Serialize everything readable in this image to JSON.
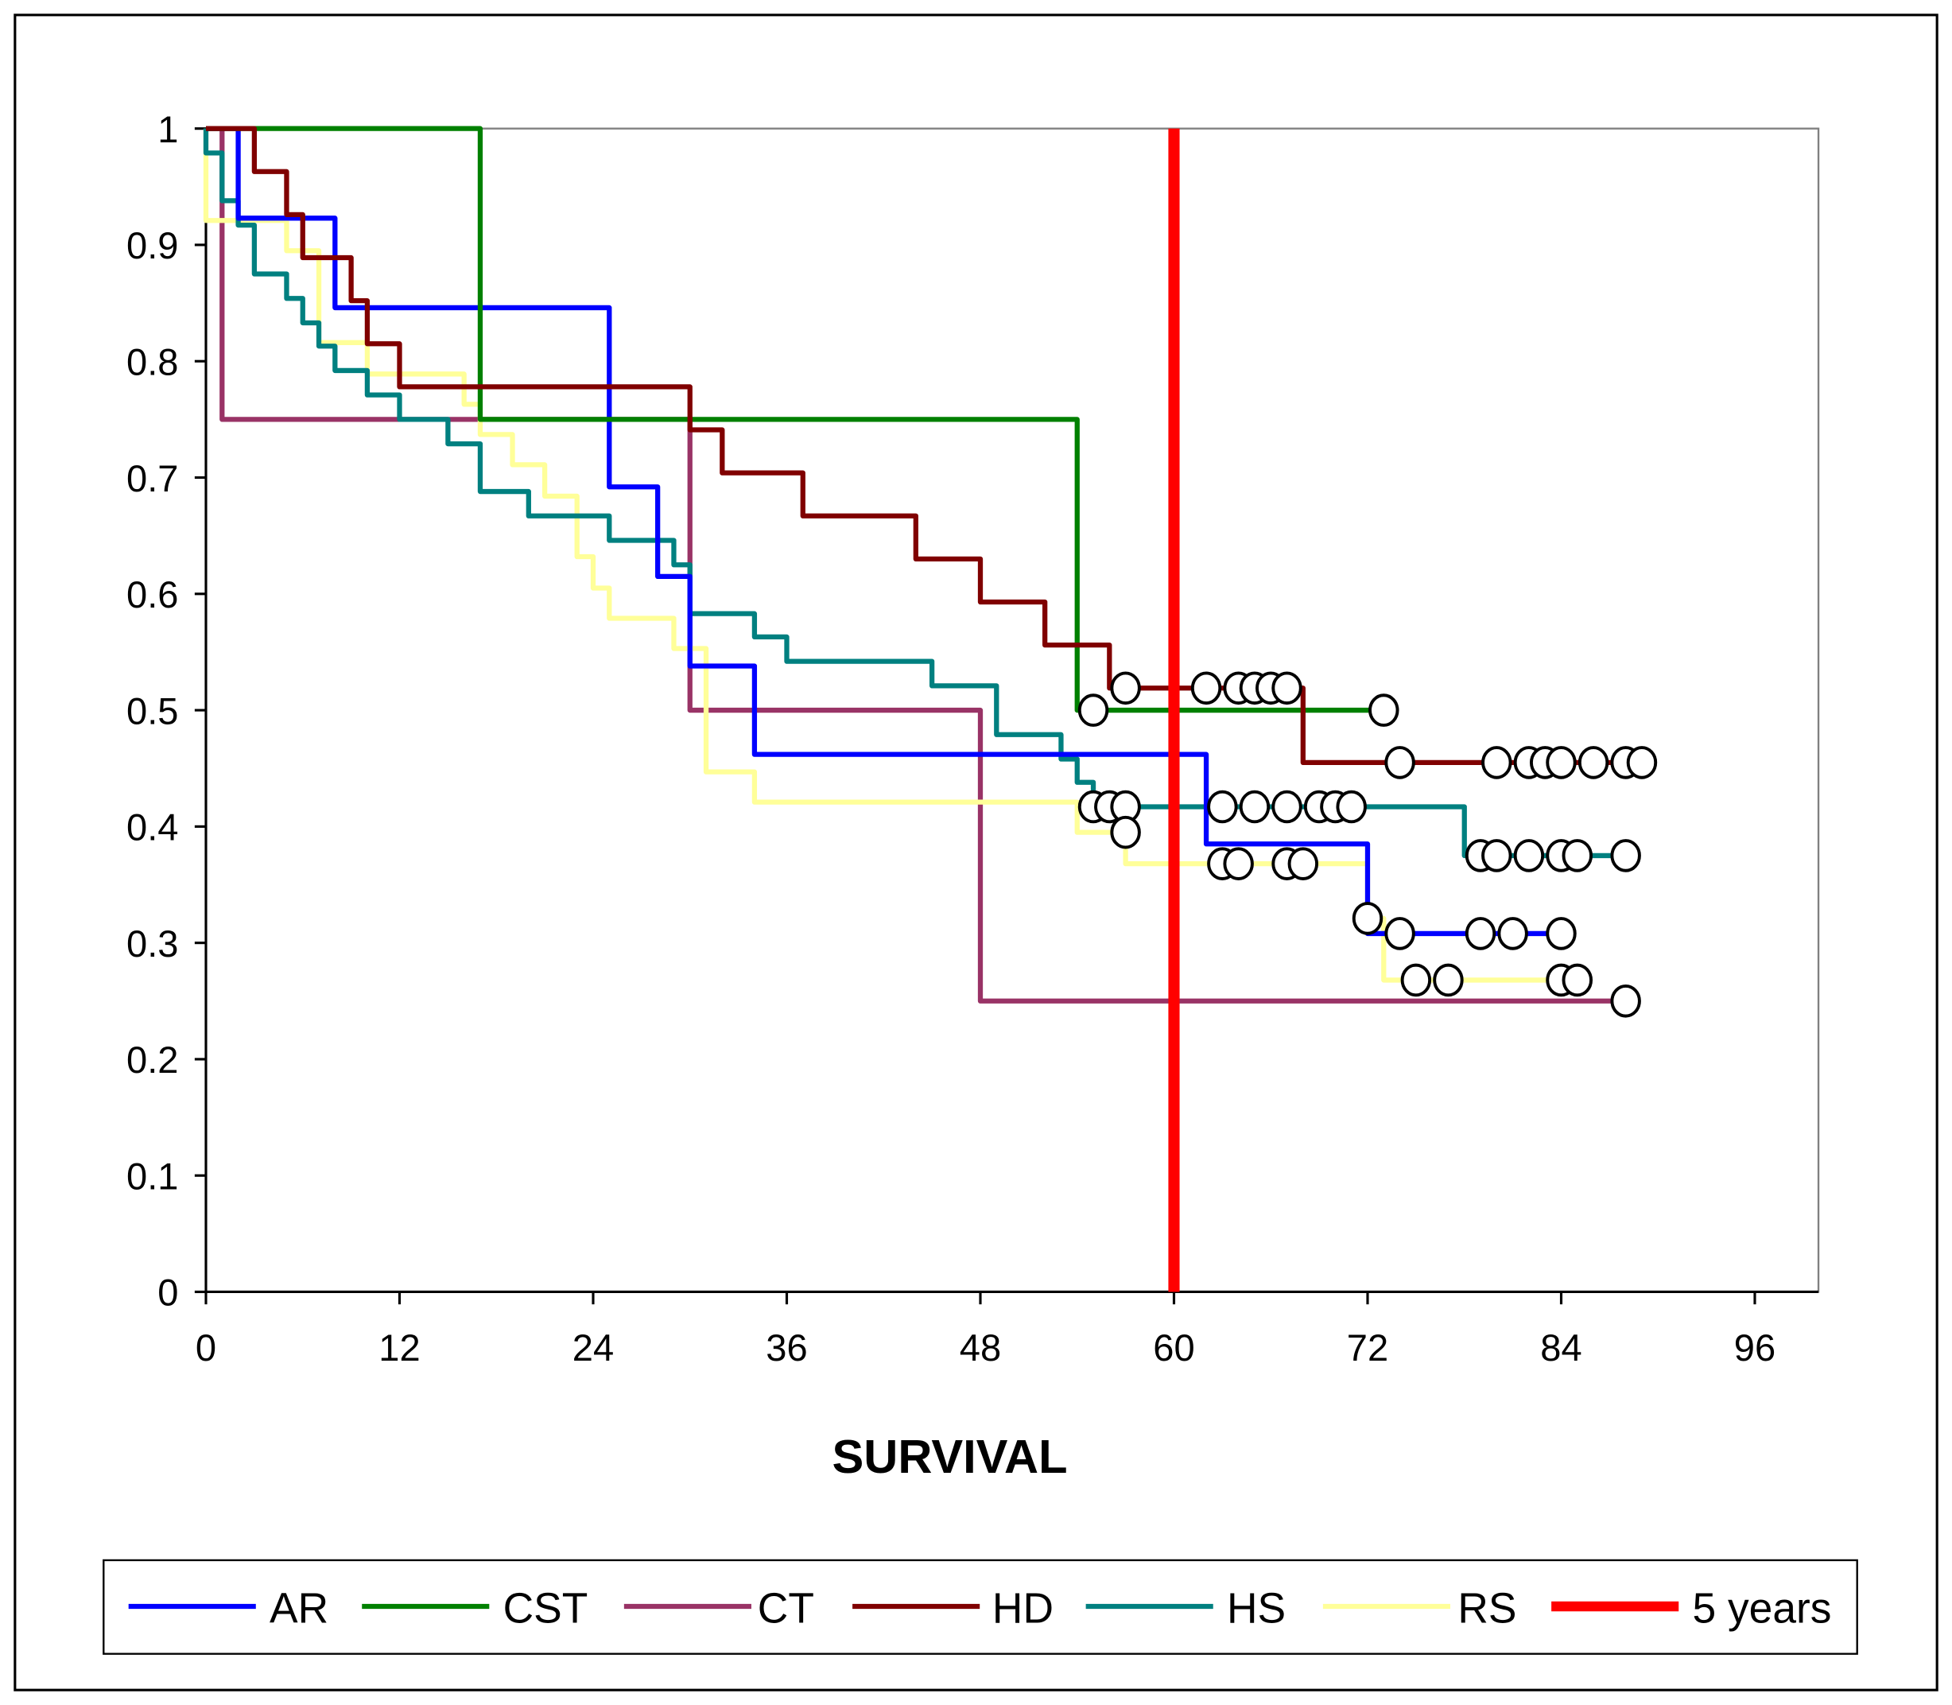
{
  "chart_data": {
    "type": "line",
    "subtype": "kaplan-meier step",
    "title": "",
    "xlabel": "SURVIVAL",
    "ylabel": "",
    "xlim": [
      0,
      100
    ],
    "ylim": [
      0,
      1
    ],
    "xticks": [
      "0",
      "12",
      "24",
      "36",
      "48",
      "60",
      "72",
      "84",
      "96"
    ],
    "xtick_values": [
      0,
      12,
      24,
      36,
      48,
      60,
      72,
      84,
      96
    ],
    "yticks": [
      "0",
      "0.1",
      "0.2",
      "0.3",
      "0.4",
      "0.5",
      "0.6",
      "0.7",
      "0.8",
      "0.9",
      "1"
    ],
    "ytick_values": [
      0,
      0.1,
      0.2,
      0.3,
      0.4,
      0.5,
      0.6,
      0.7,
      0.8,
      0.9,
      1
    ],
    "grid": false,
    "legend_position": "bottom",
    "series": [
      {
        "name": "AR",
        "color": "#0000ff",
        "steps": [
          [
            0,
            1
          ],
          [
            2,
            0.923
          ],
          [
            8,
            0.846
          ],
          [
            25,
            0.692
          ],
          [
            28,
            0.615
          ],
          [
            30,
            0.538
          ],
          [
            34,
            0.462
          ],
          [
            62,
            0.385
          ],
          [
            72,
            0.308
          ],
          [
            84,
            0.308
          ]
        ],
        "censored": [
          [
            74,
            0.308
          ],
          [
            79,
            0.308
          ],
          [
            81,
            0.308
          ],
          [
            84,
            0.308
          ]
        ]
      },
      {
        "name": "CST",
        "color": "#008000",
        "steps": [
          [
            0,
            1
          ],
          [
            17,
            0.75
          ],
          [
            54,
            0.5
          ],
          [
            73,
            0.5
          ]
        ],
        "censored": [
          [
            55,
            0.5
          ],
          [
            73,
            0.5
          ]
        ]
      },
      {
        "name": "CT",
        "color": "#993366",
        "steps": [
          [
            0,
            1
          ],
          [
            1,
            0.75
          ],
          [
            30,
            0.5
          ],
          [
            48,
            0.25
          ],
          [
            88,
            0.25
          ]
        ],
        "censored": [
          [
            88,
            0.25
          ]
        ]
      },
      {
        "name": "HD",
        "color": "#800000",
        "steps": [
          [
            0,
            1
          ],
          [
            3,
            0.963
          ],
          [
            5,
            0.926
          ],
          [
            6,
            0.889
          ],
          [
            9,
            0.852
          ],
          [
            10,
            0.815
          ],
          [
            12,
            0.778
          ],
          [
            30,
            0.741
          ],
          [
            32,
            0.704
          ],
          [
            37,
            0.667
          ],
          [
            44,
            0.63
          ],
          [
            48,
            0.593
          ],
          [
            52,
            0.556
          ],
          [
            56,
            0.519
          ],
          [
            68,
            0.455
          ],
          [
            89,
            0.455
          ]
        ],
        "censored": [
          [
            57,
            0.519
          ],
          [
            62,
            0.519
          ],
          [
            64,
            0.519
          ],
          [
            65,
            0.519
          ],
          [
            66,
            0.519
          ],
          [
            67,
            0.519
          ],
          [
            74,
            0.455
          ],
          [
            80,
            0.455
          ],
          [
            82,
            0.455
          ],
          [
            83,
            0.455
          ],
          [
            84,
            0.455
          ],
          [
            86,
            0.455
          ],
          [
            88,
            0.455
          ],
          [
            89,
            0.455
          ]
        ]
      },
      {
        "name": "HS",
        "color": "#008080",
        "steps": [
          [
            0,
            0.979
          ],
          [
            1,
            0.938
          ],
          [
            2,
            0.917
          ],
          [
            3,
            0.875
          ],
          [
            5,
            0.854
          ],
          [
            6,
            0.833
          ],
          [
            7,
            0.813
          ],
          [
            8,
            0.792
          ],
          [
            10,
            0.771
          ],
          [
            12,
            0.75
          ],
          [
            15,
            0.729
          ],
          [
            17,
            0.688
          ],
          [
            20,
            0.667
          ],
          [
            25,
            0.646
          ],
          [
            29,
            0.625
          ],
          [
            30,
            0.583
          ],
          [
            34,
            0.563
          ],
          [
            36,
            0.542
          ],
          [
            45,
            0.521
          ],
          [
            49,
            0.479
          ],
          [
            53,
            0.458
          ],
          [
            54,
            0.438
          ],
          [
            55,
            0.417
          ],
          [
            78,
            0.375
          ],
          [
            88,
            0.375
          ]
        ],
        "censored": [
          [
            55,
            0.417
          ],
          [
            56,
            0.417
          ],
          [
            57,
            0.417
          ],
          [
            63,
            0.417
          ],
          [
            65,
            0.417
          ],
          [
            67,
            0.417
          ],
          [
            69,
            0.417
          ],
          [
            70,
            0.417
          ],
          [
            71,
            0.417
          ],
          [
            79,
            0.375
          ],
          [
            80,
            0.375
          ],
          [
            82,
            0.375
          ],
          [
            84,
            0.375
          ],
          [
            85,
            0.375
          ],
          [
            88,
            0.375
          ]
        ]
      },
      {
        "name": "RS",
        "color": "#ffff99",
        "steps": [
          [
            0,
            1
          ],
          [
            0,
            0.921
          ],
          [
            5,
            0.895
          ],
          [
            7,
            0.816
          ],
          [
            10,
            0.789
          ],
          [
            16,
            0.763
          ],
          [
            17,
            0.737
          ],
          [
            19,
            0.711
          ],
          [
            21,
            0.684
          ],
          [
            23,
            0.632
          ],
          [
            24,
            0.605
          ],
          [
            25,
            0.579
          ],
          [
            29,
            0.553
          ],
          [
            31,
            0.447
          ],
          [
            34,
            0.421
          ],
          [
            54,
            0.395
          ],
          [
            57,
            0.368
          ],
          [
            72,
            0.321
          ],
          [
            73,
            0.268
          ],
          [
            85,
            0.268
          ]
        ],
        "censored": [
          [
            57,
            0.395
          ],
          [
            63,
            0.368
          ],
          [
            64,
            0.368
          ],
          [
            67,
            0.368
          ],
          [
            68,
            0.368
          ],
          [
            72,
            0.321
          ],
          [
            75,
            0.268
          ],
          [
            77,
            0.268
          ],
          [
            84,
            0.268
          ],
          [
            85,
            0.268
          ]
        ]
      }
    ],
    "reference_line": {
      "name": "5 years",
      "x": 60,
      "color": "#ff0000"
    }
  }
}
